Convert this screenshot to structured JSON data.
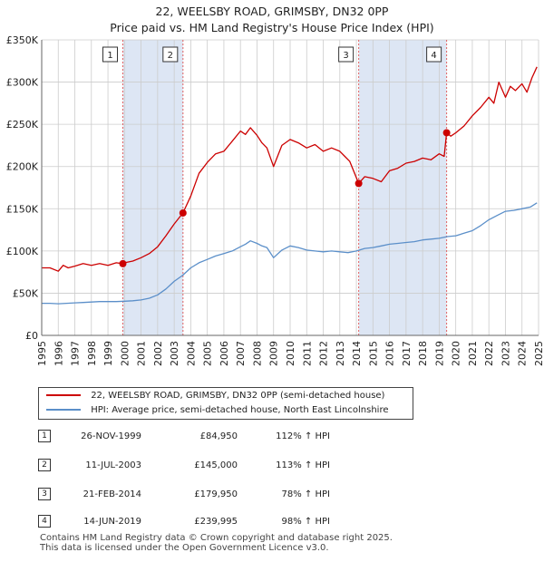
{
  "title": {
    "line1": "22, WEELSBY ROAD, GRIMSBY, DN32 0PP",
    "line2": "Price paid vs. HM Land Registry's House Price Index (HPI)"
  },
  "colors": {
    "property": "#cc0000",
    "hpi": "#5b8fc9",
    "band": "#dde6f4",
    "vline": "#e06060",
    "grid": "#cccccc"
  },
  "legend": {
    "property_label": "22, WEELSBY ROAD, GRIMSBY, DN32 0PP (semi-detached house)",
    "hpi_label": "HPI: Average price, semi-detached house, North East Lincolnshire"
  },
  "sales": [
    {
      "num": "1",
      "date": "26-NOV-1999",
      "price": "£84,950",
      "hpi": "112% ↑ HPI"
    },
    {
      "num": "2",
      "date": "11-JUL-2003",
      "price": "£145,000",
      "hpi": "113% ↑ HPI"
    },
    {
      "num": "3",
      "date": "21-FEB-2014",
      "price": "£179,950",
      "hpi": "78% ↑ HPI"
    },
    {
      "num": "4",
      "date": "14-JUN-2019",
      "price": "£239,995",
      "hpi": "98% ↑ HPI"
    }
  ],
  "footer": {
    "line1": "Contains HM Land Registry data © Crown copyright and database right 2025.",
    "line2": "This data is licensed under the Open Government Licence v3.0."
  },
  "chart_data": {
    "type": "line",
    "xlim": [
      1995,
      2025
    ],
    "ylim": [
      0,
      350000
    ],
    "x_ticks": [
      1995,
      1996,
      1997,
      1998,
      1999,
      2000,
      2001,
      2002,
      2003,
      2004,
      2005,
      2006,
      2007,
      2008,
      2009,
      2010,
      2011,
      2012,
      2013,
      2014,
      2015,
      2016,
      2017,
      2018,
      2019,
      2020,
      2021,
      2022,
      2023,
      2024,
      2025
    ],
    "y_ticks": [
      {
        "value": 0,
        "label": "£0"
      },
      {
        "value": 50000,
        "label": "£50K"
      },
      {
        "value": 100000,
        "label": "£100K"
      },
      {
        "value": 150000,
        "label": "£150K"
      },
      {
        "value": 200000,
        "label": "£200K"
      },
      {
        "value": 250000,
        "label": "£250K"
      },
      {
        "value": 300000,
        "label": "£300K"
      },
      {
        "value": 350000,
        "label": "£350K"
      }
    ],
    "grid": true,
    "shaded_bands": [
      [
        1999.9,
        2003.53
      ],
      [
        2014.14,
        2019.45
      ]
    ],
    "markers": [
      {
        "label": "1",
        "x": 1999.9,
        "y": 84950
      },
      {
        "label": "2",
        "x": 2003.53,
        "y": 145000
      },
      {
        "label": "3",
        "x": 2014.14,
        "y": 179950
      },
      {
        "label": "4",
        "x": 2019.45,
        "y": 239995
      }
    ],
    "series": [
      {
        "name": "22, WEELSBY ROAD, GRIMSBY, DN32 0PP (semi-detached house)",
        "x": [
          1995,
          1995.5,
          1996,
          1996.3,
          1996.6,
          1997,
          1997.5,
          1998,
          1998.5,
          1999,
          1999.5,
          1999.9,
          2000,
          2000.5,
          2001,
          2001.5,
          2002,
          2002.5,
          2003,
          2003.53,
          2004,
          2004.5,
          2005,
          2005.5,
          2006,
          2006.5,
          2007,
          2007.3,
          2007.6,
          2008,
          2008.3,
          2008.6,
          2009,
          2009.5,
          2010,
          2010.5,
          2011,
          2011.5,
          2012,
          2012.5,
          2013,
          2013.3,
          2013.6,
          2014.14,
          2014.5,
          2015,
          2015.5,
          2016,
          2016.5,
          2017,
          2017.5,
          2018,
          2018.5,
          2019,
          2019.3,
          2019.45,
          2019.7,
          2020,
          2020.5,
          2021,
          2021.5,
          2022,
          2022.3,
          2022.6,
          2023,
          2023.3,
          2023.6,
          2024,
          2024.3,
          2024.6,
          2024.9
        ],
        "values": [
          80000,
          80000,
          76000,
          83000,
          80000,
          82000,
          85000,
          83000,
          85000,
          83000,
          86000,
          84950,
          86000,
          88000,
          92000,
          97000,
          105000,
          118000,
          132000,
          145000,
          165000,
          192000,
          205000,
          215000,
          218000,
          230000,
          242000,
          238000,
          246000,
          237000,
          228000,
          222000,
          200000,
          225000,
          232000,
          228000,
          222000,
          226000,
          218000,
          222000,
          218000,
          212000,
          206000,
          179950,
          188000,
          186000,
          182000,
          195000,
          198000,
          204000,
          206000,
          210000,
          208000,
          215000,
          212000,
          239995,
          236000,
          240000,
          248000,
          260000,
          270000,
          282000,
          275000,
          300000,
          282000,
          295000,
          290000,
          298000,
          288000,
          305000,
          318000
        ]
      },
      {
        "name": "HPI: Average price, semi-detached house, North East Lincolnshire",
        "x": [
          1995,
          1995.5,
          1996,
          1996.5,
          1997,
          1997.5,
          1998,
          1998.5,
          1999,
          1999.5,
          2000,
          2000.5,
          2001,
          2001.5,
          2002,
          2002.5,
          2003,
          2003.5,
          2004,
          2004.5,
          2005,
          2005.5,
          2006,
          2006.5,
          2007,
          2007.3,
          2007.6,
          2008,
          2008.3,
          2008.6,
          2009,
          2009.5,
          2010,
          2010.5,
          2011,
          2011.5,
          2012,
          2012.5,
          2013,
          2013.5,
          2014,
          2014.5,
          2015,
          2015.5,
          2016,
          2016.5,
          2017,
          2017.5,
          2018,
          2018.5,
          2019,
          2019.5,
          2020,
          2020.5,
          2021,
          2021.5,
          2022,
          2022.5,
          2023,
          2023.5,
          2024,
          2024.5,
          2024.9
        ],
        "values": [
          38000,
          38000,
          37500,
          38000,
          38500,
          39000,
          39500,
          40000,
          40000,
          40000,
          40500,
          41000,
          42000,
          44000,
          48000,
          55000,
          64000,
          71000,
          80000,
          86000,
          90000,
          94000,
          97000,
          100000,
          105000,
          108000,
          112000,
          109000,
          106000,
          104000,
          92000,
          101000,
          106000,
          104000,
          101000,
          100000,
          99000,
          100000,
          99000,
          98000,
          100000,
          103000,
          104000,
          106000,
          108000,
          109000,
          110000,
          111000,
          113000,
          114000,
          115000,
          117000,
          118000,
          121000,
          124000,
          130000,
          137000,
          142000,
          147000,
          148000,
          150000,
          152000,
          157000
        ]
      }
    ]
  }
}
